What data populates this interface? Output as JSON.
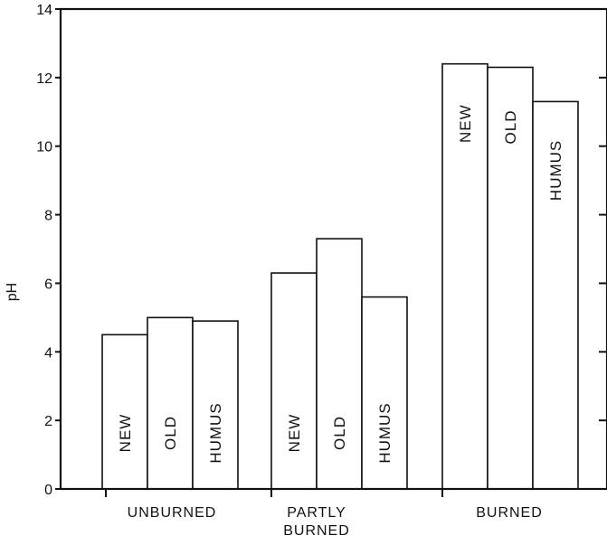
{
  "chart_data": {
    "type": "bar",
    "ylabel": "pH",
    "ylim": [
      0,
      14
    ],
    "yticks": [
      0,
      2,
      4,
      6,
      8,
      10,
      12,
      14
    ],
    "categories": [
      {
        "label_lines": [
          "UNBURNED"
        ],
        "bars": [
          {
            "label": "NEW",
            "value": 4.5
          },
          {
            "label": "OLD",
            "value": 5.0
          },
          {
            "label": "HUMUS",
            "value": 4.9
          }
        ]
      },
      {
        "label_lines": [
          "PARTLY",
          "BURNED"
        ],
        "bars": [
          {
            "label": "NEW",
            "value": 6.3
          },
          {
            "label": "OLD",
            "value": 7.3
          },
          {
            "label": "HUMUS",
            "value": 5.6
          }
        ]
      },
      {
        "label_lines": [
          "BURNED"
        ],
        "bars": [
          {
            "label": "NEW",
            "value": 12.4
          },
          {
            "label": "OLD",
            "value": 12.3
          },
          {
            "label": "HUMUS",
            "value": 11.3
          }
        ]
      }
    ],
    "grid": false,
    "legend": "none"
  }
}
